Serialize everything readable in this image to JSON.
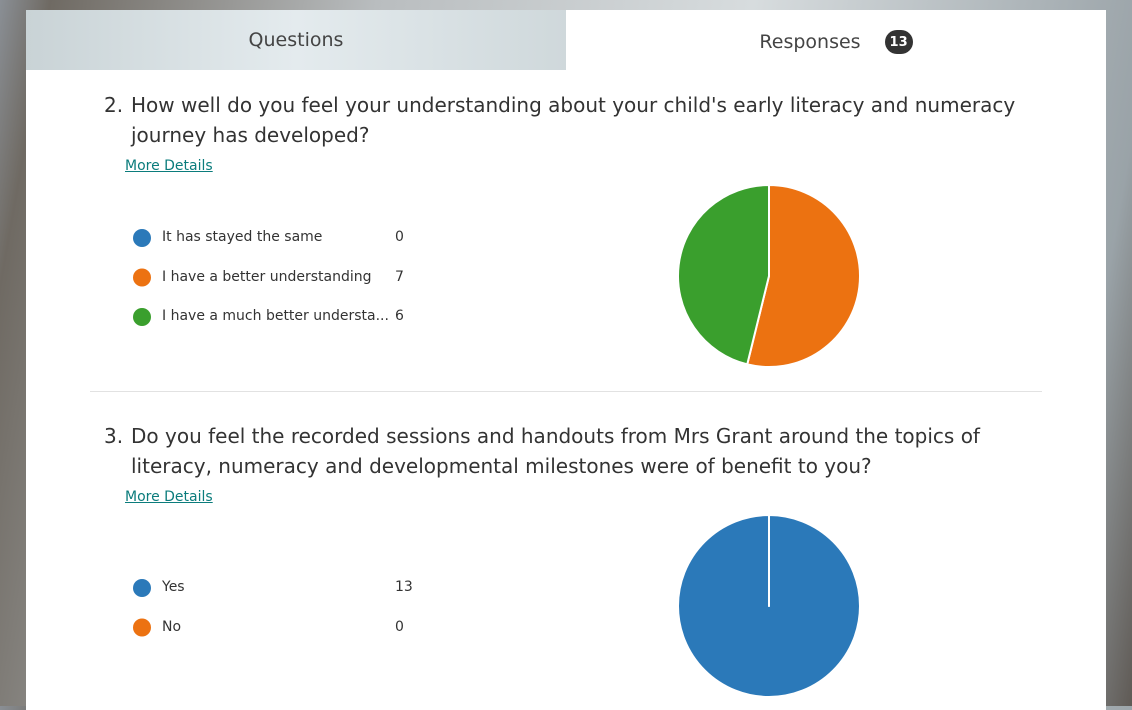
{
  "tabs": {
    "questions": "Questions",
    "responses": "Responses",
    "response_count": 13
  },
  "questions": [
    {
      "number": "2.",
      "text": "How well do you feel your understanding about your child's early literacy and numeracy journey has developed?",
      "link": "More Details",
      "chart": {
        "type": "pie",
        "categories": [
          "It has stayed the same",
          "I have a better understanding",
          "I have a much better understa..."
        ],
        "values": [
          0,
          7,
          6
        ],
        "colors": [
          "#2b79b9",
          "#ec7211",
          "#3a9f2d"
        ]
      }
    },
    {
      "number": "3.",
      "text": "Do you feel the recorded sessions and handouts from Mrs Grant around the topics of literacy, numeracy and developmental milestones were of benefit to you?",
      "link": "More Details",
      "chart": {
        "type": "pie",
        "categories": [
          "Yes",
          "No"
        ],
        "values": [
          13,
          0
        ],
        "colors": [
          "#2b79b9",
          "#ec7211"
        ]
      }
    }
  ]
}
